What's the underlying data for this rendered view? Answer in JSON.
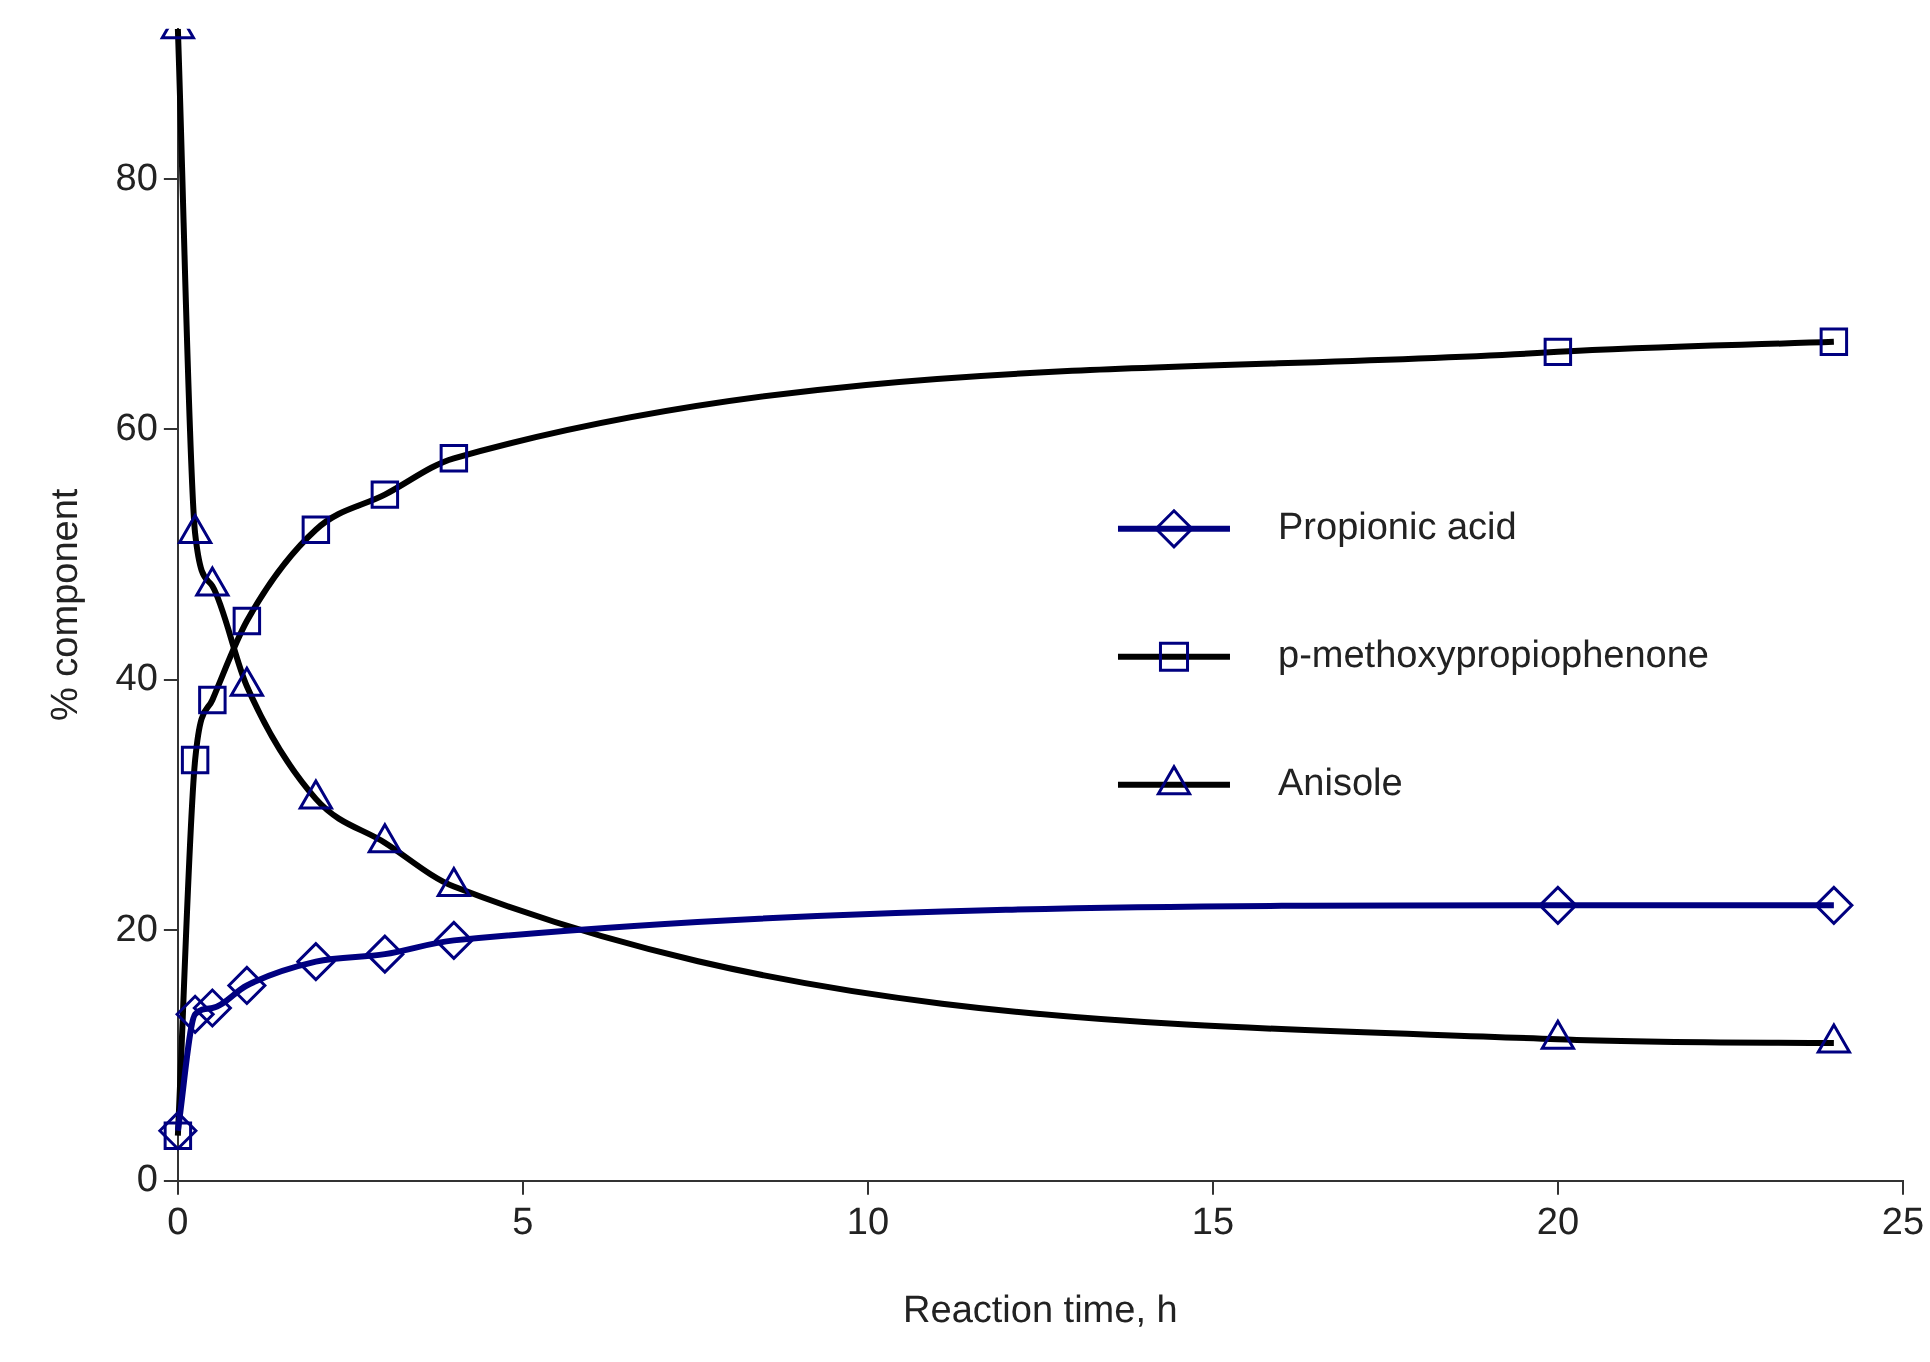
{
  "chart_data": {
    "type": "line",
    "xlabel": "Reaction time, h",
    "ylabel": "% component",
    "x": [
      0,
      0.25,
      0.5,
      1,
      2,
      3,
      4,
      20,
      24
    ],
    "series": [
      {
        "name": "Propionic acid",
        "color": "#000080",
        "colors": [
          "#000080",
          "#000080",
          "#000080",
          "#000080",
          "#000080",
          "#000080",
          "#000080",
          "#000080",
          "#000080"
        ],
        "marker": "diamond",
        "values": [
          4,
          13.3,
          13.8,
          15.6,
          17.5,
          18.1,
          19.2,
          22,
          22
        ]
      },
      {
        "name": "p-methoxypropiophenone",
        "color": "#000000",
        "colors": [
          "#000080",
          "#000080",
          "#000080",
          "#000080",
          "#000080",
          "#000080",
          "#000080",
          "#000080",
          "#000080"
        ],
        "marker": "square",
        "values": [
          3.6,
          33.6,
          38.4,
          44.7,
          52,
          54.8,
          57.7,
          66.2,
          67
        ]
      },
      {
        "name": "Anisole",
        "color": "#000000",
        "colors": [
          "#000080",
          "#000080",
          "#000080",
          "#000080",
          "#000080",
          "#000080",
          "#000080",
          "#000080",
          "#000080"
        ],
        "marker": "triangle",
        "values": [
          92,
          51.7,
          47.5,
          39.5,
          30.5,
          27,
          23.5,
          11.3,
          11
        ]
      }
    ],
    "xlim": [
      0,
      25
    ],
    "xticks": [
      0,
      5,
      10,
      15,
      20,
      25
    ],
    "ylim": [
      0,
      92
    ],
    "yticks": [
      0,
      20,
      40,
      60,
      80
    ],
    "grid": false,
    "legend": "right",
    "line_style": "solid"
  }
}
